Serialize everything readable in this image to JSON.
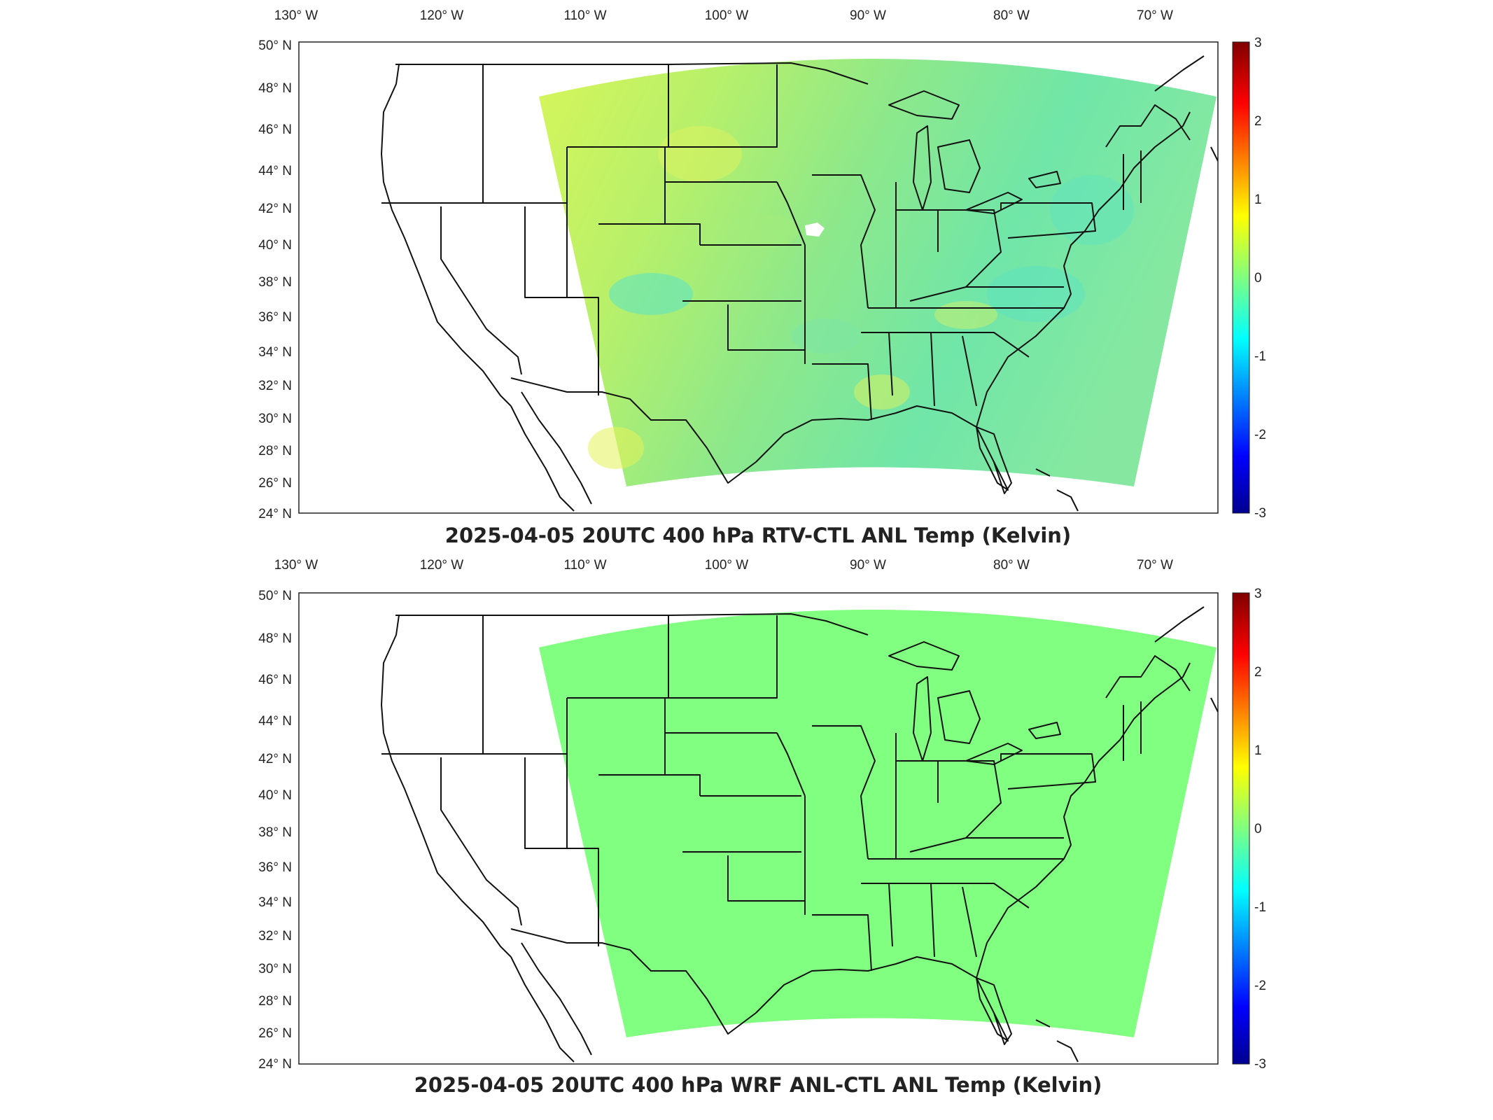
{
  "longitude_labels": [
    "130° W",
    "120° W",
    "110° W",
    "100° W",
    "90° W",
    "80° W",
    "70° W"
  ],
  "latitude_labels": [
    "50° N",
    "48° N",
    "46° N",
    "44° N",
    "42° N",
    "40° N",
    "38° N",
    "36° N",
    "34° N",
    "32° N",
    "30° N",
    "28° N",
    "26° N",
    "24° N"
  ],
  "colorbar": {
    "ticks": [
      "3",
      "2",
      "1",
      "0",
      "-1",
      "-2",
      "-3"
    ],
    "colormap": [
      "#00008f",
      "#0000ff",
      "#00ffff",
      "#80ff80",
      "#ffff00",
      "#ff0000",
      "#800000"
    ]
  },
  "panels": [
    {
      "title": "2025-04-05 20UTC 400 hPa RTV-CTL ANL Temp (Kelvin)",
      "field_color": "#6ee8a0",
      "field_value_range_K": [
        -0.6,
        0.8
      ]
    },
    {
      "title": "2025-04-05 20UTC 400 hPa WRF ANL-CTL ANL Temp (Kelvin)",
      "field_color": "#80ff80",
      "field_value_range_K": [
        0,
        0
      ]
    }
  ]
}
